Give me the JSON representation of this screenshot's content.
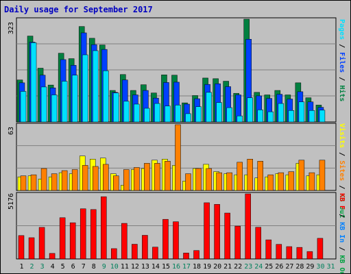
{
  "title": "Daily usage for September 2017",
  "colors": {
    "hits": "#008040",
    "files": "#0040ff",
    "pages": "#00e0ff",
    "visits": "#ffff00",
    "sites": "#ff8000",
    "kbytes": "#ff0000",
    "day_normal": "#000000",
    "day_weekend": "#00805c"
  },
  "chart_data": [
    {
      "type": "bar",
      "name_label": "Pages / Files / Hits",
      "ymax_label": "323",
      "ylim": [
        0,
        323
      ],
      "categories": [
        "1",
        "2",
        "3",
        "4",
        "5",
        "6",
        "7",
        "8",
        "9",
        "10",
        "11",
        "12",
        "13",
        "14",
        "15",
        "16",
        "17",
        "18",
        "19",
        "20",
        "21",
        "22",
        "23",
        "24",
        "25",
        "26",
        "27",
        "28",
        "29",
        "30",
        "31"
      ],
      "series": [
        {
          "name": "Hits",
          "values": [
            132,
            270,
            169,
            116,
            216,
            199,
            300,
            263,
            242,
            99,
            149,
            99,
            117,
            91,
            148,
            147,
            60,
            83,
            138,
            136,
            128,
            90,
            323,
            93,
            85,
            99,
            85,
            123,
            76,
            53,
            0
          ]
        },
        {
          "name": "Files",
          "values": [
            123,
            251,
            147,
            107,
            196,
            178,
            280,
            243,
            228,
            93,
            132,
            85,
            99,
            75,
            124,
            125,
            56,
            73,
            118,
            120,
            111,
            85,
            260,
            82,
            74,
            87,
            72,
            95,
            63,
            46,
            0
          ]
        },
        {
          "name": "Pages",
          "values": [
            96,
            249,
            110,
            85,
            128,
            147,
            211,
            224,
            161,
            91,
            65,
            56,
            43,
            58,
            50,
            53,
            26,
            48,
            93,
            61,
            45,
            19,
            76,
            38,
            32,
            58,
            36,
            63,
            36,
            37,
            0
          ]
        }
      ]
    },
    {
      "type": "bar",
      "name_label": "Visits / Sites / KB Out",
      "ymax_label": "63",
      "ylim": [
        0,
        63
      ],
      "categories": [
        "1",
        "2",
        "3",
        "4",
        "5",
        "6",
        "7",
        "8",
        "9",
        "10",
        "11",
        "12",
        "13",
        "14",
        "15",
        "16",
        "17",
        "18",
        "19",
        "20",
        "21",
        "22",
        "23",
        "24",
        "25",
        "26",
        "27",
        "28",
        "29",
        "30",
        "31"
      ],
      "series": [
        {
          "name": "Visits",
          "values": [
            13,
            14,
            11,
            13,
            17,
            16,
            33,
            30,
            31,
            16,
            5,
            20,
            21,
            29,
            30,
            24,
            9,
            21,
            25,
            18,
            16,
            15,
            15,
            12,
            13,
            16,
            15,
            26,
            14,
            15,
            0
          ]
        },
        {
          "name": "Sites",
          "values": [
            14,
            15,
            21,
            16,
            19,
            20,
            24,
            23,
            25,
            14,
            20,
            22,
            26,
            26,
            28,
            63,
            16,
            21,
            21,
            17,
            17,
            27,
            30,
            28,
            15,
            17,
            18,
            29,
            17,
            29,
            0
          ]
        }
      ]
    },
    {
      "type": "bar",
      "name_label": "KB In / KB F",
      "ymax_label": "5176",
      "ylim": [
        0,
        5176
      ],
      "categories": [
        "1",
        "2",
        "3",
        "4",
        "5",
        "6",
        "7",
        "8",
        "9",
        "10",
        "11",
        "12",
        "13",
        "14",
        "15",
        "16",
        "17",
        "18",
        "19",
        "20",
        "21",
        "22",
        "23",
        "24",
        "25",
        "26",
        "27",
        "28",
        "29",
        "30",
        "31"
      ],
      "series": [
        {
          "name": "KB F",
          "values": [
            1860,
            1690,
            2510,
            440,
            3280,
            2880,
            3990,
            3930,
            4950,
            820,
            2830,
            1170,
            1880,
            940,
            3150,
            2960,
            470,
            670,
            4470,
            4340,
            3650,
            2610,
            5176,
            2520,
            1520,
            1160,
            980,
            920,
            590,
            1640,
            0
          ]
        }
      ]
    }
  ],
  "right_labels": [
    [
      {
        "text": "Pages",
        "color": "#00e0ff"
      },
      {
        "text": " / ",
        "color": "#000000"
      },
      {
        "text": "Files",
        "color": "#0040ff"
      },
      {
        "text": " / ",
        "color": "#000000"
      },
      {
        "text": "Hits",
        "color": "#008040"
      }
    ],
    [
      {
        "text": "Visits",
        "color": "#ffff00"
      },
      {
        "text": " / ",
        "color": "#000000"
      },
      {
        "text": "Sites",
        "color": "#ff8000"
      },
      {
        "text": " / ",
        "color": "#000000"
      },
      {
        "text": "KB Out",
        "color": "#00a040"
      }
    ],
    [
      {
        "text": "KB F",
        "color": "#ff0000"
      },
      {
        "text": " / ",
        "color": "#000000"
      },
      {
        "text": "KB In",
        "color": "#0080ff"
      },
      {
        "text": " / ",
        "color": "#000000"
      },
      {
        "text": "KB Out",
        "color": "#00a040"
      }
    ]
  ],
  "weekend_days": [
    2,
    3,
    9,
    10,
    16,
    17,
    23,
    24,
    30,
    31
  ]
}
